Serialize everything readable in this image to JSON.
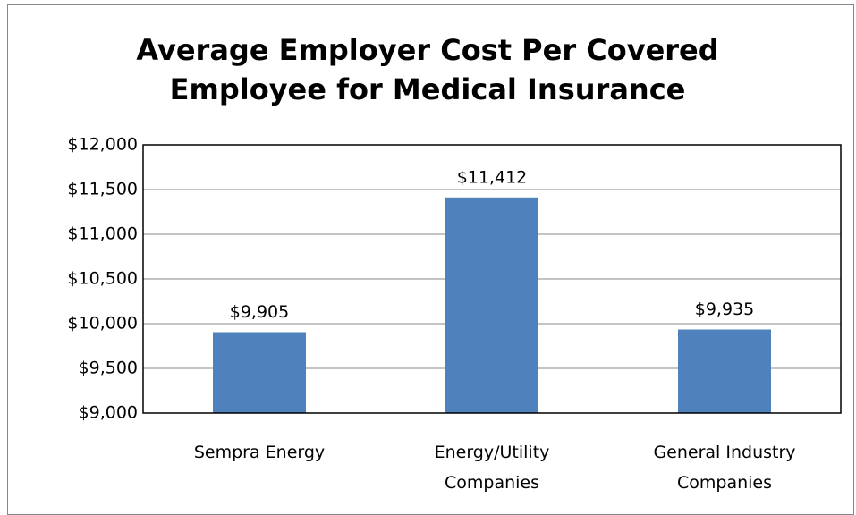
{
  "chart_data": {
    "type": "bar",
    "title": "Average Employer Cost Per Covered Employee for Medical Insurance",
    "categories": [
      "Sempra Energy",
      "Energy/Utility Companies",
      "General Industry Companies"
    ],
    "values": [
      9905,
      11412,
      9935
    ],
    "value_labels": [
      "$9,905",
      "$11,412",
      "$9,935"
    ],
    "color": "#4f81bd",
    "ylim": [
      9000,
      12000
    ],
    "yticks": [
      {
        "value": 9000,
        "label": "$9,000"
      },
      {
        "value": 9500,
        "label": "$9,500"
      },
      {
        "value": 10000,
        "label": "$10,000"
      },
      {
        "value": 10500,
        "label": "$10,500"
      },
      {
        "value": 11000,
        "label": "$11,000"
      },
      {
        "value": 11500,
        "label": "$11,500"
      },
      {
        "value": 12000,
        "label": "$12,000"
      }
    ],
    "grid": true
  }
}
